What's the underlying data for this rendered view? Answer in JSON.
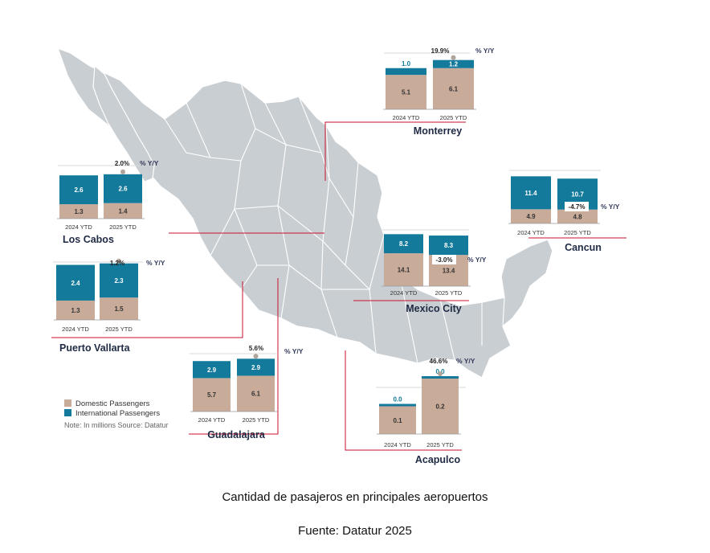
{
  "colors": {
    "domestic": "#c9ab9a",
    "international": "#137a9c",
    "map_fill": "#c9ced2",
    "map_stroke": "#ffffff",
    "leader_line": "#c8102e",
    "label_text": "#1f2a44",
    "pct_text": "#333a5c"
  },
  "caption": {
    "title": "Cantidad de pasajeros en principales aeropuertos",
    "source": "Fuente: Datatur 2025"
  },
  "legend": {
    "domestic": "Domestic Passengers",
    "international": "International Passengers",
    "note": "Note: In millions Source: Datatur"
  },
  "chart_data": [
    {
      "type": "bar",
      "title": "Monterrey",
      "categories": [
        "2024 YTD",
        "2025 YTD"
      ],
      "series": [
        {
          "name": "Domestic Passengers",
          "values": [
            5.1,
            6.1
          ]
        },
        {
          "name": "International Passengers",
          "values": [
            1.0,
            1.2
          ]
        }
      ],
      "yoy": "19.9%",
      "yoy_label": "% Y/Y"
    },
    {
      "type": "bar",
      "title": "Los Cabos",
      "categories": [
        "2024 YTD",
        "2025 YTD"
      ],
      "series": [
        {
          "name": "Domestic Passengers",
          "values": [
            1.3,
            1.4
          ]
        },
        {
          "name": "International Passengers",
          "values": [
            2.6,
            2.6
          ]
        }
      ],
      "yoy": "2.0%",
      "yoy_label": "% Y/Y"
    },
    {
      "type": "bar",
      "title": "Cancun",
      "categories": [
        "2024 YTD",
        "2025 YTD"
      ],
      "series": [
        {
          "name": "Domestic Passengers",
          "values": [
            4.9,
            4.8
          ]
        },
        {
          "name": "International Passengers",
          "values": [
            11.4,
            10.7
          ]
        }
      ],
      "yoy": "-4.7%",
      "yoy_label": "% Y/Y"
    },
    {
      "type": "bar",
      "title": "Puerto Vallarta",
      "categories": [
        "2024 YTD",
        "2025 YTD"
      ],
      "series": [
        {
          "name": "Domestic Passengers",
          "values": [
            1.3,
            1.5
          ]
        },
        {
          "name": "International Passengers",
          "values": [
            2.4,
            2.3
          ]
        }
      ],
      "yoy": "1.2%",
      "yoy_label": "% Y/Y"
    },
    {
      "type": "bar",
      "title": "Mexico City",
      "categories": [
        "2024 YTD",
        "2025 YTD"
      ],
      "series": [
        {
          "name": "Domestic Passengers",
          "values": [
            14.1,
            13.4
          ]
        },
        {
          "name": "International Passengers",
          "values": [
            8.2,
            8.3
          ]
        }
      ],
      "yoy": "-3.0%",
      "yoy_label": "% Y/Y"
    },
    {
      "type": "bar",
      "title": "Guadalajara",
      "categories": [
        "2024 YTD",
        "2025 YTD"
      ],
      "series": [
        {
          "name": "Domestic Passengers",
          "values": [
            5.7,
            6.1
          ]
        },
        {
          "name": "International Passengers",
          "values": [
            2.9,
            2.9
          ]
        }
      ],
      "yoy": "5.6%",
      "yoy_label": "% Y/Y"
    },
    {
      "type": "bar",
      "title": "Acapulco",
      "categories": [
        "2024 YTD",
        "2025 YTD"
      ],
      "series": [
        {
          "name": "Domestic Passengers",
          "values": [
            0.1,
            0.2
          ]
        },
        {
          "name": "International Passengers",
          "values": [
            0.0,
            0.0
          ]
        }
      ],
      "yoy": "46.6%",
      "yoy_label": "% Y/Y"
    }
  ]
}
